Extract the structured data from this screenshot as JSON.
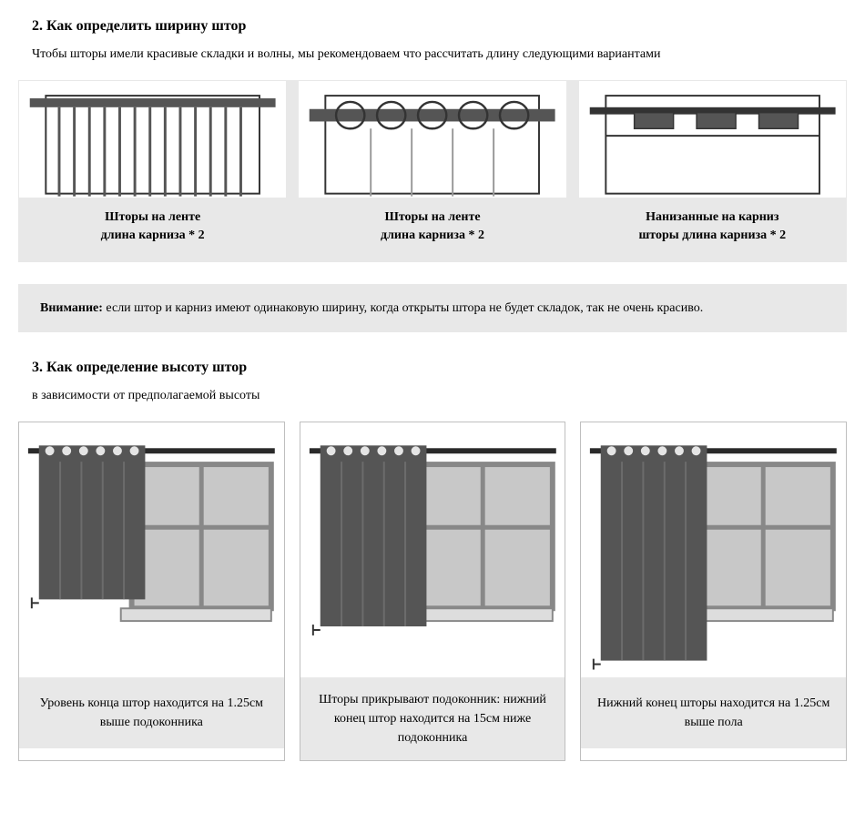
{
  "section2": {
    "title": "2. Как определить ширину штор",
    "intro": "Чтобы шторы имели красивые складки и волны, мы рекомендоваем что рассчитать длину следующими вариантами",
    "cards": [
      {
        "line1": "Шторы на ленте",
        "line2": "длина карниза * 2"
      },
      {
        "line1": "Шторы на ленте",
        "line2": "длина карниза * 2"
      },
      {
        "line1": "Нанизанные на карниз",
        "line2": "шторы длина карниза * 2"
      }
    ]
  },
  "notice": {
    "label": "Внимание:",
    "text": " если штор и карниз имеют одинаковую ширину, когда открыты штора не будет складок, так не очень красиво."
  },
  "section3": {
    "title": "3. Как определение высоту штор",
    "intro": "в зависимости от предполагаемой высоты",
    "cards": [
      {
        "caption": "Уровень конца штор находится на 1.25см выше подоконника"
      },
      {
        "caption": "Шторы прикрывают подоконник: нижний конец штор находится на 15см ниже подоконника"
      },
      {
        "caption": "Нижний конец шторы находится на 1.25см выше пола"
      }
    ]
  },
  "colors": {
    "dark": "#555555",
    "rod": "#2a2a2a",
    "panel_bg": "#e8e8e8",
    "outline": "#333333",
    "window_frame": "#888888",
    "window_fill": "#c8c8c8"
  },
  "curtain_lengths": [
    195,
    225,
    263
  ]
}
